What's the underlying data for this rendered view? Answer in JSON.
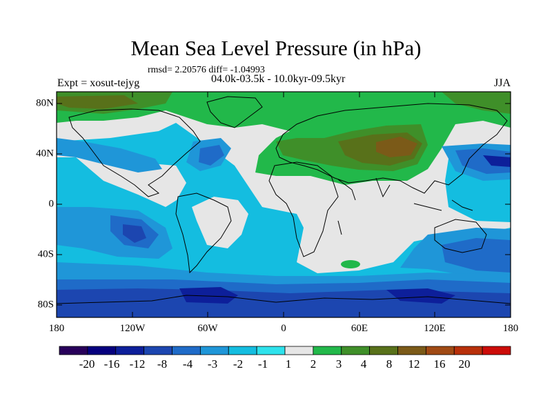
{
  "title": "Mean Sea Level Pressure (in hPa)",
  "stats": "rmsd= 2.20576 diff= -1.04993",
  "period": "04.0k-03.5k - 10.0kyr-09.5kyr",
  "expt": "Expt = xosut-tejyg",
  "season": "JJA",
  "y_ticks": [
    "80N",
    "40N",
    "0",
    "40S",
    "80S"
  ],
  "x_ticks": [
    "180",
    "120W",
    "60W",
    "0",
    "60E",
    "120E",
    "180"
  ],
  "colorbar": {
    "labels": [
      "-20",
      "-16",
      "-12",
      "-8",
      "-4",
      "-3",
      "-2",
      "-1",
      "1",
      "2",
      "3",
      "4",
      "8",
      "12",
      "16",
      "20"
    ],
    "colors": [
      "#28005a",
      "#06007e",
      "#0d1f9a",
      "#1c46b0",
      "#1f6bc8",
      "#1f96d8",
      "#14bde0",
      "#2ee2ec",
      "#e6e6e6",
      "#22b84a",
      "#3f8f29",
      "#58711a",
      "#7b5a18",
      "#a04a14",
      "#b8300a",
      "#cc0c08"
    ]
  }
}
